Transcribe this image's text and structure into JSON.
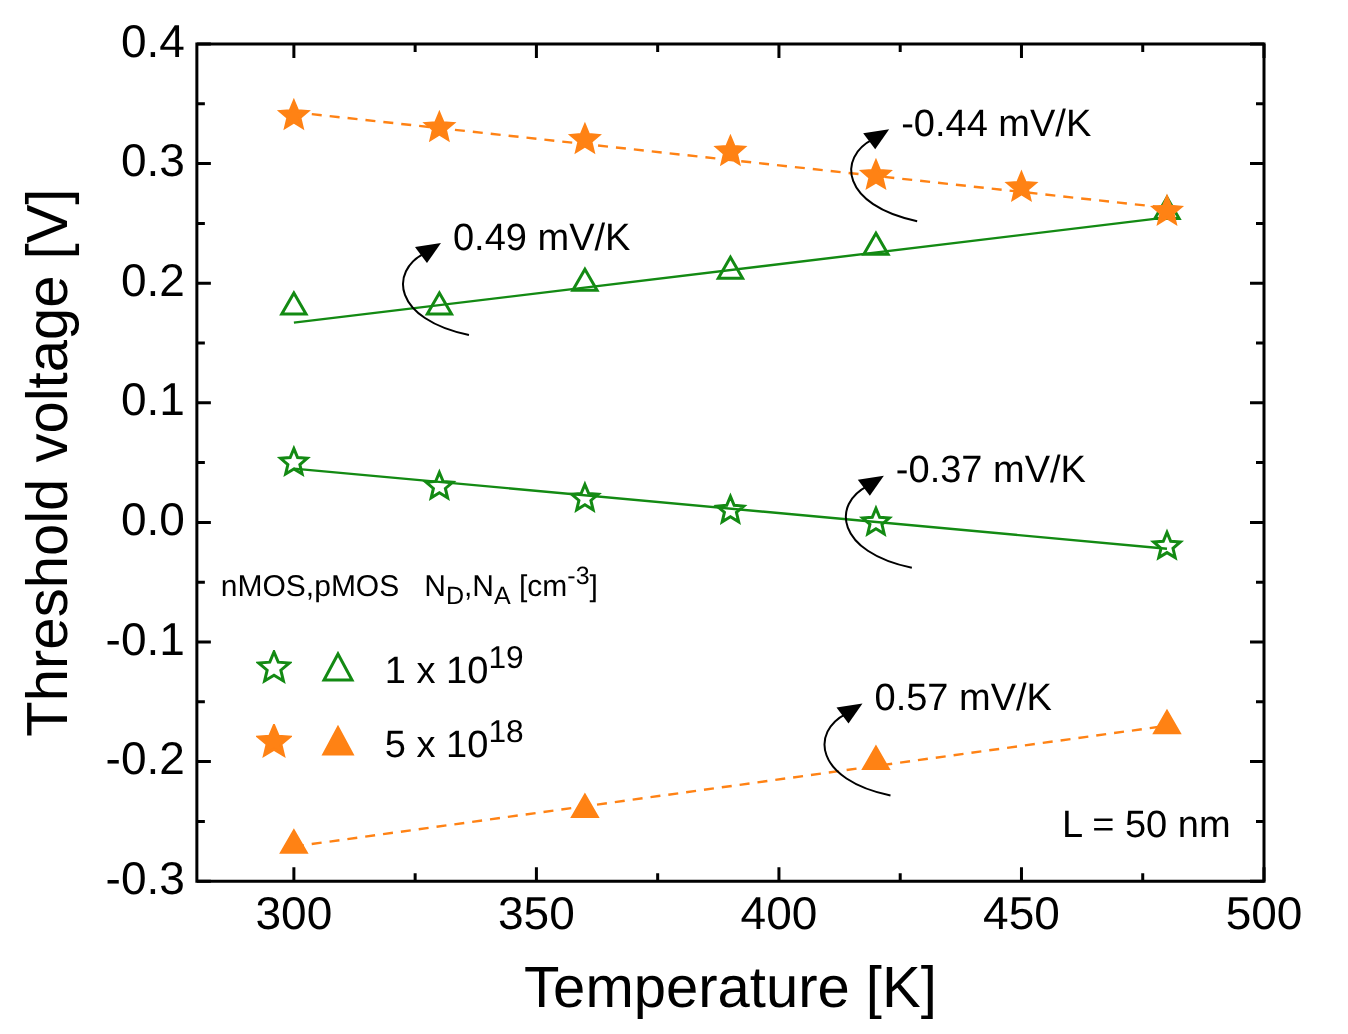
{
  "chart_data": {
    "type": "scatter",
    "xlabel": "Temperature [K]",
    "ylabel": "Threshold voltage [V]",
    "legend_title": "nMOS,pMOS   N$_{D}$,N$_{A}$ [cm$^{-3}$]",
    "legend": "left",
    "xlim": [
      280,
      500
    ],
    "xticks": [
      300,
      350,
      400,
      450,
      500
    ],
    "ylim": [
      -0.3,
      0.4
    ],
    "yticks": [
      -0.3,
      -0.2,
      -0.1,
      {
        "value": 0,
        "label": "0.0"
      },
      0.1,
      0.2,
      0.3,
      0.4
    ],
    "series": [
      {
        "marker": "star",
        "color": "#138a13",
        "x": [
          300,
          330,
          360,
          390,
          420,
          480
        ],
        "values": [
          0.05,
          0.03,
          0.02,
          0.01,
          0.0,
          -0.02
        ]
      },
      {
        "marker": "triangle",
        "name": "1 x 10$^{19}$",
        "color": "#138a13",
        "x": [
          300,
          330,
          360,
          390,
          420,
          480
        ],
        "values": [
          0.18,
          0.18,
          0.2,
          0.21,
          0.23,
          0.26
        ]
      },
      {
        "marker": "star",
        "color": "#ff8214",
        "x": [
          300,
          330,
          360,
          390,
          420,
          450,
          480
        ],
        "values": [
          0.34,
          0.33,
          0.32,
          0.31,
          0.29,
          0.28,
          0.26
        ]
      },
      {
        "marker": "triangle",
        "name": "5 x 10$^{18}$",
        "color": "#ff8214",
        "x": [
          300,
          360,
          420,
          480
        ],
        "values": [
          -0.27,
          -0.24,
          -0.2,
          -0.17
        ]
      },
      {
        "type": "line",
        "marker": "none",
        "line_style": "solid",
        "color": "#138a13",
        "x": [
          300,
          480
        ],
        "values": [
          0.045,
          -0.022
        ]
      },
      {
        "type": "line",
        "marker": "none",
        "line_style": "solid",
        "color": "#138a13",
        "x": [
          300,
          480
        ],
        "values": [
          0.167,
          0.255
        ]
      },
      {
        "type": "line",
        "marker": "none",
        "line_style": "dashed",
        "color": "#ff8214",
        "x": [
          300,
          480
        ],
        "values": [
          0.343,
          0.263
        ]
      },
      {
        "type": "line",
        "marker": "none",
        "line_style": "dashed",
        "color": "#ff8214",
        "x": [
          300,
          480
        ],
        "values": [
          -0.271,
          -0.17
        ]
      }
    ],
    "annotations": [
      "-0.44 mV/K",
      "0.49 mV/K",
      "-0.37 mV/K",
      "0.57 mV/K",
      "L = 50 nm"
    ]
  }
}
